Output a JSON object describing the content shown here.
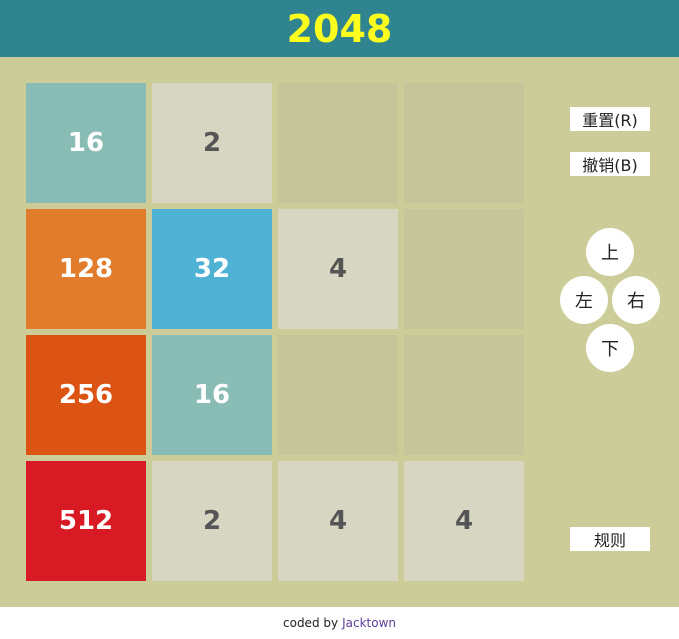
{
  "header": {
    "title": "2048"
  },
  "board": {
    "rows": [
      [
        16,
        2,
        null,
        null
      ],
      [
        128,
        32,
        4,
        null
      ],
      [
        256,
        16,
        null,
        null
      ],
      [
        512,
        2,
        4,
        4
      ]
    ]
  },
  "tile_colors": {
    "empty": "#c5c59a",
    "2": "#d6d6c2",
    "4": "#d6d6c2",
    "16": "#8abcb6",
    "32": "#4fb2d5",
    "128": "#e07c2b",
    "256": "#db5413",
    "512": "#d71a23"
  },
  "text_colors": {
    "dark": "#555555",
    "light": "#ffffff"
  },
  "controls": {
    "reset_label": "重置(R)",
    "undo_label": "撤销(B)",
    "up_label": "上",
    "left_label": "左",
    "right_label": "右",
    "down_label": "下",
    "rules_label": "规则"
  },
  "footer": {
    "prefix": "coded by",
    "author": "Jacktown"
  }
}
